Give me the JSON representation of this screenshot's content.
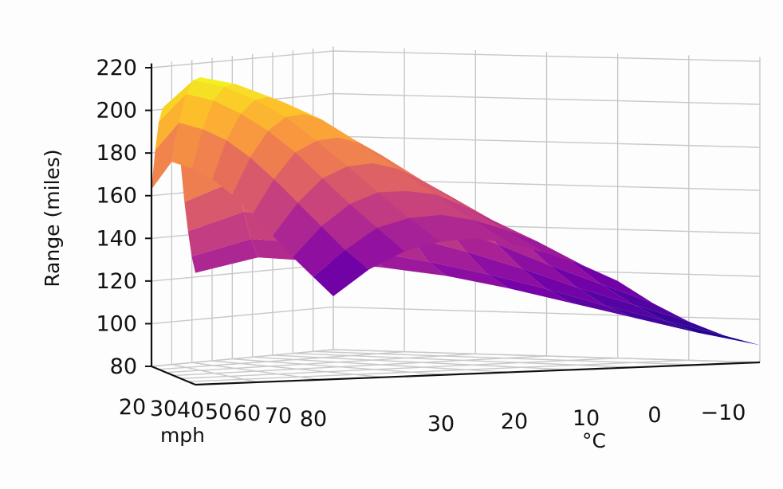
{
  "chart_data": {
    "type": "surface",
    "title": "",
    "xlabel": "mph",
    "ylabel": "°C",
    "zlabel": "Range (miles)",
    "speed_mph": [
      20,
      25,
      30,
      35,
      40,
      45,
      50,
      55,
      60,
      65,
      70,
      75,
      80
    ],
    "temperature_c": [
      35,
      30,
      25,
      20,
      15,
      10,
      5,
      0,
      -5,
      -10
    ],
    "x_ticks": [
      "20",
      "30",
      "40",
      "50",
      "60",
      "70",
      "80"
    ],
    "y_ticks": [
      "30",
      "20",
      "10",
      "0",
      "−10"
    ],
    "z_ticks": [
      "80",
      "100",
      "120",
      "140",
      "160",
      "180",
      "200",
      "220"
    ],
    "zlim": [
      80,
      220
    ],
    "colormap": "plasma",
    "grid": true,
    "range_miles": [
      [
        163,
        182,
        196,
        203,
        205,
        203,
        198,
        191,
        180,
        163,
        150,
        139,
        132
      ],
      [
        175,
        194,
        208,
        215,
        217,
        215,
        209,
        201,
        190,
        172,
        158,
        146,
        138
      ],
      [
        171,
        190,
        204,
        211,
        213,
        211,
        205,
        197,
        186,
        169,
        155,
        143,
        135
      ],
      [
        165,
        184,
        197,
        204,
        206,
        204,
        198,
        191,
        180,
        163,
        149,
        138,
        131
      ],
      [
        157,
        175,
        188,
        195,
        197,
        195,
        190,
        182,
        172,
        156,
        143,
        132,
        126
      ],
      [
        147,
        164,
        177,
        183,
        185,
        183,
        178,
        171,
        162,
        147,
        135,
        125,
        119
      ],
      [
        136,
        152,
        164,
        170,
        172,
        170,
        165,
        159,
        150,
        137,
        126,
        117,
        111
      ],
      [
        125,
        140,
        151,
        157,
        158,
        157,
        152,
        146,
        138,
        126,
        116,
        108,
        103
      ],
      [
        115,
        128,
        139,
        144,
        146,
        144,
        140,
        135,
        127,
        116,
        107,
        100,
        95
      ],
      [
        105,
        118,
        127,
        132,
        134,
        132,
        128,
        123,
        116,
        106,
        98,
        92,
        88
      ]
    ]
  }
}
